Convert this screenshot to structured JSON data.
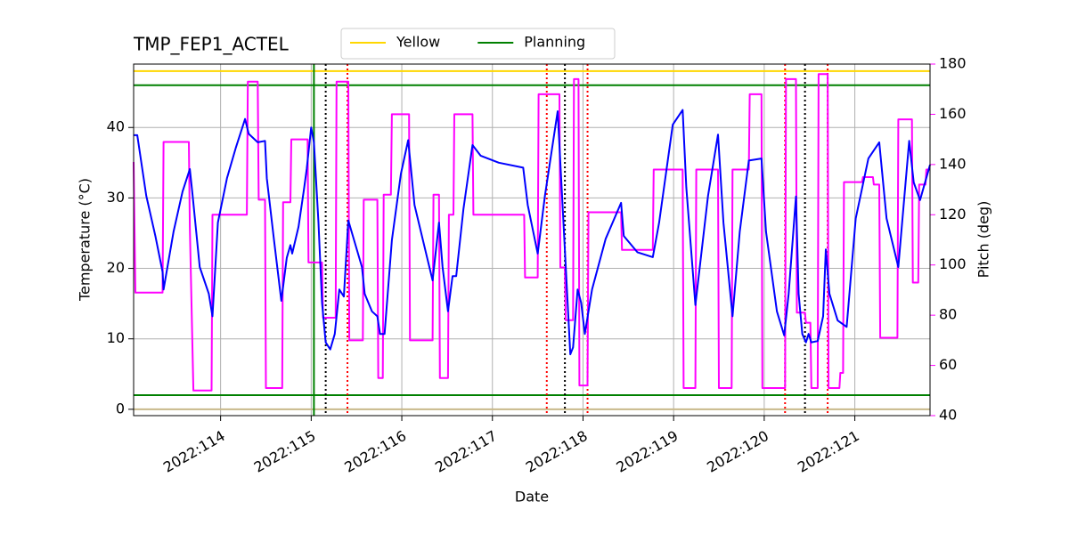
{
  "chart_data": {
    "type": "line",
    "title": "TMP_FEP1_ACTEL",
    "xlabel": "Date",
    "ylabel": "Temperature (°C)",
    "y2label": "Pitch (deg)",
    "y2label_color": "#ff00ff",
    "grid": true,
    "xlim": [
      113.04,
      121.83
    ],
    "ylim": [
      -0.9,
      49
    ],
    "y2lim": [
      40,
      180
    ],
    "xticks": [
      {
        "value": 114,
        "label": "2022:114"
      },
      {
        "value": 115,
        "label": "2022:115"
      },
      {
        "value": 116,
        "label": "2022:116"
      },
      {
        "value": 117,
        "label": "2022:117"
      },
      {
        "value": 118,
        "label": "2022:118"
      },
      {
        "value": 119,
        "label": "2022:119"
      },
      {
        "value": 120,
        "label": "2022:120"
      },
      {
        "value": 121,
        "label": "2022:121"
      }
    ],
    "yticks": [
      0,
      10,
      20,
      30,
      40
    ],
    "y2ticks": [
      40,
      60,
      80,
      100,
      120,
      140,
      160,
      180
    ],
    "hlines": [
      {
        "name": "Yellow",
        "color": "#ffd700",
        "values": [
          48
        ]
      },
      {
        "name": "Planning",
        "color": "#008000",
        "values": [
          46,
          2
        ]
      },
      {
        "color": "#c8b88a",
        "values": [
          0
        ]
      }
    ],
    "vlines": [
      {
        "color": "#008000",
        "style": "solid",
        "values": [
          115.03
        ]
      },
      {
        "color": "#000000",
        "style": "dotted",
        "values": [
          115.16,
          117.8,
          120.45
        ]
      },
      {
        "color": "#ff0000",
        "style": "dotted",
        "values": [
          115.4,
          117.6,
          118.05,
          120.23,
          120.7
        ]
      }
    ],
    "series": [
      {
        "color": "#ff00ff",
        "axis": "y2",
        "x": [
          113.04,
          113.06,
          113.36,
          113.37,
          113.65,
          113.66,
          113.7,
          113.9,
          113.91,
          114.29,
          114.3,
          114.41,
          114.42,
          114.49,
          114.5,
          114.68,
          114.69,
          114.77,
          114.78,
          114.96,
          114.97,
          115.12,
          115.13,
          115.27,
          115.28,
          115.41,
          115.42,
          115.57,
          115.58,
          115.73,
          115.74,
          115.79,
          115.8,
          115.88,
          115.89,
          116.08,
          116.09,
          116.34,
          116.35,
          116.41,
          116.42,
          116.51,
          116.52,
          116.57,
          116.58,
          116.78,
          116.79,
          117.35,
          117.36,
          117.5,
          117.51,
          117.74,
          117.75,
          117.8,
          117.81,
          117.89,
          117.9,
          117.95,
          117.96,
          118.05,
          118.06,
          118.42,
          118.43,
          118.77,
          118.78,
          119.1,
          119.11,
          119.24,
          119.25,
          119.49,
          119.5,
          119.64,
          119.65,
          119.83,
          119.84,
          119.97,
          119.98,
          120.23,
          120.24,
          120.35,
          120.36,
          120.45,
          120.46,
          120.51,
          120.52,
          120.59,
          120.6,
          120.7,
          120.71,
          120.83,
          120.84,
          120.87,
          120.88,
          121.08,
          121.09,
          121.2,
          121.21,
          121.27,
          121.28,
          121.47,
          121.48,
          121.63,
          121.64,
          121.7,
          121.71,
          121.78,
          121.79,
          121.83
        ],
        "values": [
          141,
          89,
          89,
          149,
          149,
          115,
          50,
          50,
          120,
          120,
          173,
          173,
          126,
          126,
          51,
          51,
          125,
          125,
          150,
          150,
          101,
          101,
          79,
          79,
          173,
          173,
          70,
          70,
          126,
          126,
          55,
          55,
          128,
          128,
          160,
          160,
          70,
          70,
          128,
          128,
          55,
          55,
          120,
          120,
          160,
          160,
          120,
          120,
          95,
          95,
          168,
          168,
          99,
          99,
          78,
          78,
          174,
          174,
          52,
          52,
          121,
          121,
          106,
          106,
          138,
          138,
          51,
          51,
          138,
          138,
          51,
          51,
          138,
          138,
          168,
          168,
          51,
          51,
          174,
          174,
          81,
          81,
          77,
          77,
          51,
          51,
          176,
          176,
          51,
          51,
          57,
          57,
          133,
          133,
          135,
          135,
          132,
          132,
          71,
          71,
          158,
          158,
          93,
          93,
          132,
          132,
          138,
          138
        ]
      },
      {
        "color": "#0000ff",
        "axis": "y",
        "x": [
          113.04,
          113.08,
          113.18,
          113.28,
          113.36,
          113.37,
          113.48,
          113.58,
          113.66,
          113.69,
          113.77,
          113.87,
          113.91,
          113.97,
          114.07,
          114.17,
          114.27,
          114.31,
          114.41,
          114.49,
          114.51,
          114.59,
          114.67,
          114.73,
          114.77,
          114.79,
          114.86,
          114.92,
          114.95,
          115.0,
          115.03,
          115.08,
          115.12,
          115.16,
          115.21,
          115.26,
          115.31,
          115.36,
          115.41,
          115.46,
          115.56,
          115.59,
          115.67,
          115.73,
          115.76,
          115.81,
          115.89,
          115.99,
          116.07,
          116.14,
          116.28,
          116.34,
          116.41,
          116.45,
          116.51,
          116.56,
          116.6,
          116.68,
          116.78,
          116.87,
          117.07,
          117.34,
          117.39,
          117.5,
          117.58,
          117.72,
          117.86,
          117.89,
          117.94,
          117.98,
          118.02,
          118.1,
          118.25,
          118.42,
          118.45,
          118.6,
          118.77,
          118.84,
          118.99,
          119.1,
          119.14,
          119.24,
          119.38,
          119.49,
          119.55,
          119.65,
          119.73,
          119.83,
          119.97,
          120.02,
          120.14,
          120.22,
          120.27,
          120.35,
          120.38,
          120.42,
          120.46,
          120.49,
          120.52,
          120.59,
          120.65,
          120.68,
          120.72,
          120.81,
          120.91,
          121.01,
          121.15,
          121.27,
          121.35,
          121.48,
          121.6,
          121.65,
          121.72,
          121.83
        ],
        "values": [
          38.9,
          38.9,
          30.3,
          24.6,
          19.5,
          17.0,
          25.2,
          30.9,
          34.1,
          30.5,
          20.2,
          16.4,
          13.2,
          26.5,
          32.8,
          37.2,
          41.2,
          39.1,
          37.9,
          38.1,
          32.8,
          24.0,
          15.4,
          21.5,
          23.3,
          22.1,
          25.9,
          31.2,
          34.1,
          40.0,
          37.9,
          26.5,
          15.1,
          9.5,
          8.5,
          10.7,
          17.0,
          16.0,
          26.8,
          24.6,
          20.2,
          16.4,
          13.9,
          13.2,
          10.7,
          10.7,
          24.0,
          33.4,
          38.2,
          29.0,
          21.5,
          18.3,
          26.5,
          20.2,
          13.9,
          18.9,
          18.9,
          28.4,
          37.5,
          36.0,
          35.0,
          34.3,
          29.0,
          22.1,
          30.3,
          42.3,
          7.8,
          8.8,
          17.0,
          15.1,
          10.7,
          17.0,
          24.2,
          29.3,
          24.6,
          22.3,
          21.6,
          26.5,
          40.4,
          42.5,
          31.5,
          14.8,
          30.3,
          39.0,
          26.5,
          13.2,
          25.2,
          35.3,
          35.6,
          25.2,
          13.9,
          10.5,
          16.4,
          30.2,
          16.4,
          10.7,
          9.5,
          10.7,
          9.5,
          9.7,
          13.2,
          22.7,
          16.4,
          12.6,
          11.7,
          27.1,
          35.6,
          37.9,
          27.1,
          20.2,
          38.1,
          32.2,
          29.7,
          34.7
        ]
      }
    ]
  }
}
